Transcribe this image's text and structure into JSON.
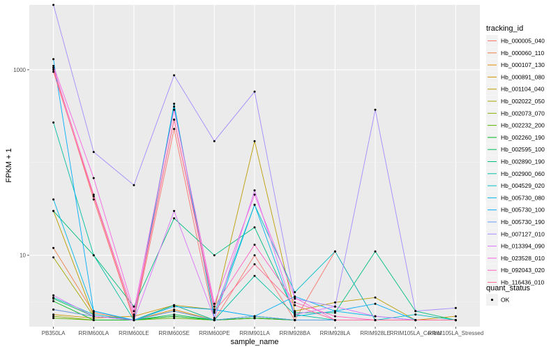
{
  "chart_data": {
    "type": "line",
    "xlabel": "sample_name",
    "ylabel": "FPKM + 1",
    "y_scale": "log10",
    "ylim": [
      1.7,
      5000
    ],
    "y_ticks": [
      10,
      1000
    ],
    "categories": [
      "PB350LA",
      "RRIM600LA",
      "RRIM600LE",
      "RRIM600SE",
      "RRIM600PE",
      "RRIM901LA",
      "RRIM928BA",
      "RRIM928LA",
      "RRIM928LE",
      "RRIM105LA_Control",
      "RRIM105LA_Stressed"
    ],
    "legend_title": "tracking_id",
    "legend2_title": "quant_status",
    "legend2_item": "OK",
    "series": [
      {
        "name": "Hb_000005_040",
        "color": "#F8766D",
        "values": [
          1000,
          40,
          2,
          230,
          2,
          10,
          2,
          11,
          2,
          2,
          2
        ]
      },
      {
        "name": "Hb_000060_110",
        "color": "#EE8044",
        "values": [
          12,
          2.4,
          2,
          2.5,
          2,
          2.1,
          2,
          2,
          2,
          2,
          2
        ]
      },
      {
        "name": "Hb_000107_130",
        "color": "#E08B00",
        "values": [
          2.6,
          2.2,
          2,
          2.6,
          2,
          2.1,
          2,
          2,
          2,
          2,
          2
        ]
      },
      {
        "name": "Hb_000891_080",
        "color": "#CF9400",
        "values": [
          2.3,
          2.1,
          2.2,
          2.9,
          2,
          2.1,
          2,
          2,
          2,
          2,
          2.2
        ]
      },
      {
        "name": "Hb_001104_040",
        "color": "#BB9D00",
        "values": [
          30,
          2.2,
          2,
          2.9,
          2.6,
          170,
          2.5,
          3.1,
          3.5,
          2,
          2
        ]
      },
      {
        "name": "Hb_002022_050",
        "color": "#A3A500",
        "values": [
          9.5,
          2.2,
          2,
          2.5,
          2,
          2.2,
          2,
          2,
          2,
          2,
          2
        ]
      },
      {
        "name": "Hb_002073_070",
        "color": "#85AD00",
        "values": [
          2.2,
          2,
          2,
          2.2,
          2,
          2.1,
          2,
          2,
          2,
          2,
          2
        ]
      },
      {
        "name": "Hb_002232_200",
        "color": "#5BB300",
        "values": [
          2.1,
          2,
          2,
          2.1,
          2,
          2.2,
          2,
          2,
          2,
          2,
          2
        ]
      },
      {
        "name": "Hb_002260_190",
        "color": "#00B81F",
        "values": [
          3.2,
          2,
          2,
          2.2,
          2,
          2.1,
          2,
          2,
          2,
          2,
          2
        ]
      },
      {
        "name": "Hb_002595_100",
        "color": "#00BC59",
        "values": [
          3.4,
          2.2,
          2,
          2.3,
          2,
          2.2,
          2,
          2,
          2,
          2,
          2
        ]
      },
      {
        "name": "Hb_002890_190",
        "color": "#00BF7D",
        "values": [
          30,
          10,
          2.8,
          25,
          10,
          20,
          2.4,
          2.4,
          11,
          2.5,
          2
        ]
      },
      {
        "name": "Hb_002900_060",
        "color": "#00C0A3",
        "values": [
          270,
          10,
          2,
          2.9,
          2,
          6,
          2.3,
          2,
          2,
          2,
          2
        ]
      },
      {
        "name": "Hb_004529_020",
        "color": "#00BFC4",
        "values": [
          3.5,
          2.3,
          2,
          400,
          2.4,
          35,
          4,
          11,
          2,
          2.3,
          2
        ]
      },
      {
        "name": "Hb_005730_080",
        "color": "#00B8E7",
        "values": [
          40,
          2.5,
          2,
          430,
          2.1,
          35,
          2.2,
          2.5,
          2.2,
          2,
          2
        ]
      },
      {
        "name": "Hb_005730_100",
        "color": "#00ADFA",
        "values": [
          1300,
          2.5,
          2,
          2.8,
          2.6,
          2.2,
          3.6,
          2.5,
          3,
          2,
          2
        ]
      },
      {
        "name": "Hb_005730_190",
        "color": "#619CFF",
        "values": [
          2.6,
          2.2,
          2,
          2.5,
          2,
          2.2,
          2,
          2,
          2,
          2,
          2
        ]
      },
      {
        "name": "Hb_007127_010",
        "color": "#A58AFF",
        "values": [
          5000,
          130,
          57,
          870,
          170,
          580,
          3.4,
          2.8,
          370,
          2.5,
          2.7
        ]
      },
      {
        "name": "Hb_013394_090",
        "color": "#DB72FB",
        "values": [
          3.7,
          2.2,
          2,
          30,
          2.1,
          50,
          2.3,
          2.8,
          2.2,
          2,
          2
        ]
      },
      {
        "name": "Hb_023528_010",
        "color": "#F564E3",
        "values": [
          1100,
          68,
          2.5,
          370,
          3,
          45,
          3.5,
          2,
          2,
          2,
          2
        ]
      },
      {
        "name": "Hb_092043_020",
        "color": "#FF61C3",
        "values": [
          1050,
          45,
          2.3,
          290,
          2.8,
          13,
          3.1,
          2.2,
          2,
          2,
          2
        ]
      },
      {
        "name": "Hb_116436_010",
        "color": "#FF6C91",
        "values": [
          950,
          43,
          2.1,
          290,
          2.5,
          8,
          2.9,
          2,
          2,
          2,
          2
        ]
      }
    ]
  }
}
